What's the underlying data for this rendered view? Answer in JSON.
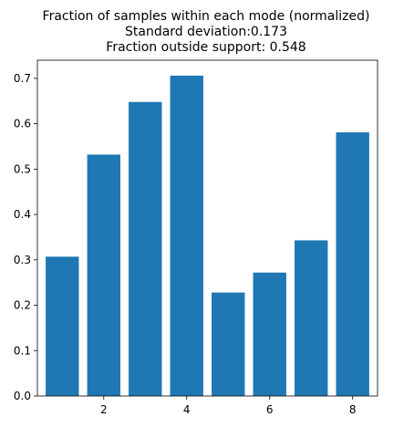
{
  "chart_data": {
    "type": "bar",
    "title_lines": [
      "Fraction of samples within each mode (normalized)",
      "Standard deviation:0.173",
      "Fraction outside support: 0.548"
    ],
    "x": [
      1,
      2,
      3,
      4,
      5,
      6,
      7,
      8
    ],
    "values": [
      0.307,
      0.532,
      0.648,
      0.706,
      0.228,
      0.272,
      0.343,
      0.581
    ],
    "bar_width": 0.8,
    "xlim": [
      0.4,
      8.6
    ],
    "ylim": [
      0.0,
      0.74
    ],
    "xticks": [
      2,
      4,
      6,
      8
    ],
    "yticks": [
      0.0,
      0.1,
      0.2,
      0.3,
      0.4,
      0.5,
      0.6,
      0.7
    ],
    "xtick_labels": [
      "2",
      "4",
      "6",
      "8"
    ],
    "ytick_labels": [
      "0.0",
      "0.1",
      "0.2",
      "0.3",
      "0.4",
      "0.5",
      "0.6",
      "0.7"
    ],
    "grid": false,
    "bar_color": "#1f77b4",
    "xlabel": "",
    "ylabel": ""
  }
}
